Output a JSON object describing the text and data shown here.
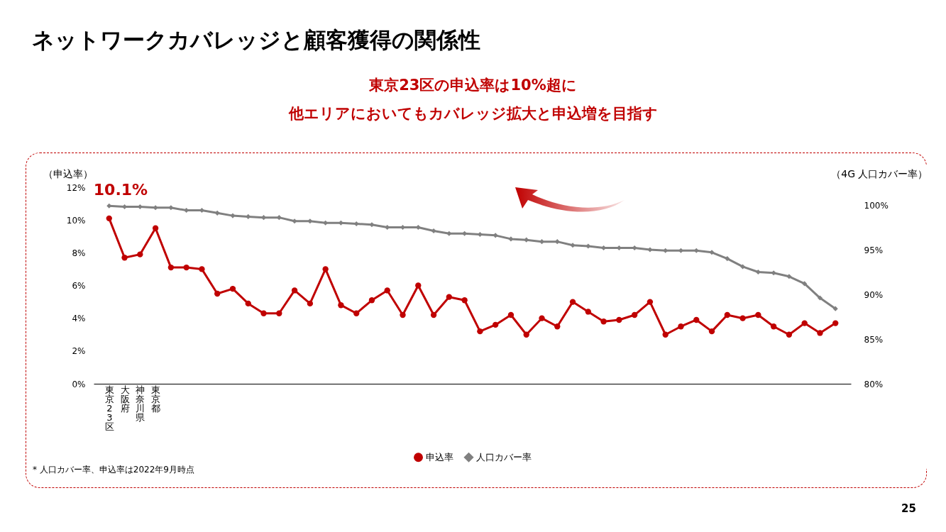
{
  "chart_data": {
    "type": "line",
    "title": "ネットワークカバレッジと顧客獲得の関係性",
    "subtitle": "東京23区の申込率は10%超に",
    "ylabel": "（申込率）",
    "y2label": "（4G 人口カバー率）",
    "categories": [
      "東京23区",
      "大阪府",
      "神奈川県",
      "東京都",
      null,
      null,
      null,
      null,
      null,
      null,
      null,
      null,
      null,
      null,
      null,
      null,
      null,
      null,
      null,
      null,
      null,
      null,
      null,
      null,
      null,
      null,
      null,
      null,
      null,
      null,
      null,
      null,
      null,
      null,
      null,
      null,
      null,
      null,
      null,
      null,
      null,
      null,
      null,
      null,
      null,
      null,
      null,
      null
    ],
    "series": [
      {
        "name": "申込率",
        "color": "#c00000",
        "marker": "circle",
        "values": [
          10.1,
          7.7,
          7.9,
          9.5,
          7.1,
          7.1,
          7.0,
          5.5,
          5.8,
          4.9,
          4.3,
          4.3,
          5.7,
          4.9,
          7.0,
          4.8,
          4.3,
          5.1,
          5.7,
          4.2,
          6.0,
          4.2,
          5.3,
          5.1,
          3.2,
          3.6,
          4.2,
          3.0,
          4.0,
          3.5,
          5.0,
          4.4,
          3.8,
          3.9,
          4.2,
          5.0,
          3.0,
          3.5,
          3.9,
          3.2,
          4.2,
          4.0,
          4.2,
          3.5,
          3.0,
          3.7,
          3.1,
          3.7
        ]
      },
      {
        "name": "人口カバー率",
        "color": "#808080",
        "marker": "diamond",
        "axis": "y2",
        "values": [
          99.9,
          99.8,
          99.8,
          99.7,
          99.7,
          99.4,
          99.4,
          99.1,
          98.8,
          98.7,
          98.6,
          98.6,
          98.2,
          98.2,
          98.0,
          98.0,
          97.9,
          97.8,
          97.5,
          97.5,
          97.5,
          97.1,
          96.8,
          96.8,
          96.7,
          96.6,
          96.2,
          96.1,
          95.9,
          95.9,
          95.5,
          95.4,
          95.2,
          95.2,
          95.2,
          95.0,
          94.9,
          94.9,
          94.9,
          94.7,
          94.0,
          93.1,
          92.5,
          92.4,
          92.0,
          91.2,
          89.6,
          88.4
        ]
      }
    ],
    "ylim": [
      0,
      12
    ],
    "yticks": [
      {
        "value": 0,
        "label": "0%"
      },
      {
        "value": 2,
        "label": "2%"
      },
      {
        "value": 4,
        "label": "4%"
      },
      {
        "value": 6,
        "label": "6%"
      },
      {
        "value": 8,
        "label": "8%"
      },
      {
        "value": 10,
        "label": "10%"
      },
      {
        "value": 12,
        "label": "12%"
      }
    ],
    "y2lim": [
      80,
      100
    ],
    "y2ticks": [
      {
        "value": 80,
        "label": "80%"
      },
      {
        "value": 85,
        "label": "85%"
      },
      {
        "value": 90,
        "label": "90%"
      },
      {
        "value": 95,
        "label": "95%"
      },
      {
        "value": 100,
        "label": "100%"
      }
    ],
    "annotations": [
      {
        "text": "10.1%",
        "x": "東京23区",
        "y": 10.1
      },
      "他エリアにおいてもカバレッジ拡大と申込増を目指す",
      "* 人口カバー率、申込率は2022年9月時点",
      "25"
    ],
    "grid": false,
    "legend": "bottom"
  }
}
